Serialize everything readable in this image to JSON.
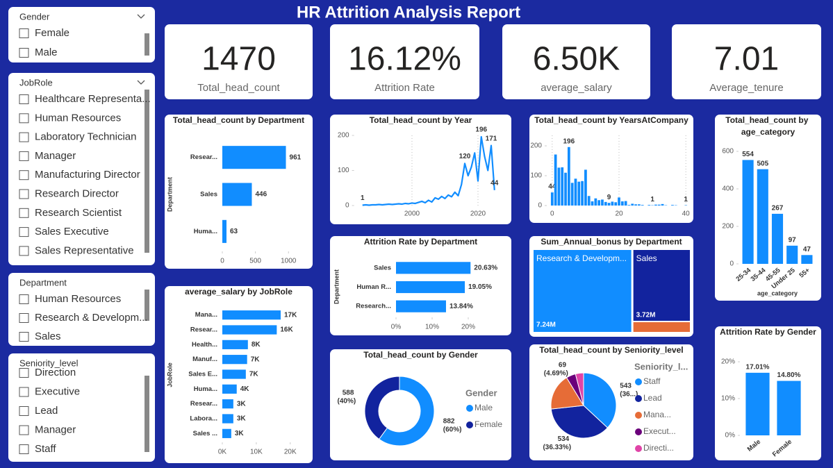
{
  "title": "HR Attrition Analysis Report",
  "slicers": [
    {
      "title": "Gender",
      "items": [
        "Female",
        "Male"
      ]
    },
    {
      "title": "JobRole",
      "items": [
        "Healthcare Representa...",
        "Human Resources",
        "Laboratory Technician",
        "Manager",
        "Manufacturing Director",
        "Research Director",
        "Research Scientist",
        "Sales Executive",
        "Sales Representative"
      ]
    },
    {
      "title": "Department",
      "items": [
        "Human Resources",
        "Research & Developm...",
        "Sales"
      ]
    },
    {
      "title": "Seniority_level",
      "items": [
        "Direction",
        "Executive",
        "Lead",
        "Manager",
        "Staff"
      ]
    }
  ],
  "cards": [
    {
      "value": "1470",
      "label": "Total_head_count"
    },
    {
      "value": "16.12%",
      "label": "Attrition Rate"
    },
    {
      "value": "6.50K",
      "label": "average_salary"
    },
    {
      "value": "7.01",
      "label": "Average_tenure"
    }
  ],
  "chart_data": [
    {
      "type": "hbar",
      "title": "Total_head_count by Department",
      "y_label": "Department",
      "categories": [
        "Resear...",
        "Sales",
        "Huma..."
      ],
      "values": [
        961,
        446,
        63
      ],
      "color": "#118dff",
      "xlim": [
        0,
        1050
      ],
      "xticks": [
        0,
        500,
        1000
      ]
    },
    {
      "type": "line",
      "title": "Total_head_count by Year",
      "x": [
        1985,
        1986,
        1987,
        1988,
        1989,
        1990,
        1991,
        1992,
        1993,
        1994,
        1995,
        1996,
        1997,
        1998,
        1999,
        2000,
        2001,
        2002,
        2003,
        2004,
        2005,
        2006,
        2007,
        2008,
        2009,
        2010,
        2011,
        2012,
        2013,
        2014,
        2015,
        2016,
        2017,
        2018,
        2019,
        2020,
        2021,
        2022,
        2023,
        2024,
        2025
      ],
      "values": [
        1,
        2,
        1,
        2,
        2,
        3,
        2,
        3,
        4,
        3,
        4,
        5,
        4,
        6,
        5,
        7,
        6,
        9,
        12,
        8,
        15,
        10,
        22,
        18,
        26,
        20,
        30,
        25,
        38,
        28,
        60,
        120,
        85,
        110,
        150,
        70,
        196,
        140,
        100,
        171,
        44
      ],
      "value_labels": [
        "1",
        null,
        null,
        null,
        null,
        null,
        null,
        null,
        null,
        null,
        null,
        null,
        null,
        null,
        null,
        null,
        null,
        null,
        null,
        null,
        null,
        null,
        null,
        null,
        null,
        null,
        null,
        null,
        null,
        null,
        null,
        "120",
        null,
        null,
        null,
        null,
        "196",
        null,
        null,
        "171",
        "44"
      ],
      "color": "#118dff",
      "xlim": [
        1983.5,
        2028
      ],
      "xticks": [
        2000,
        2020
      ],
      "ylim": [
        0,
        200
      ],
      "yticks": [
        0,
        100,
        200
      ]
    },
    {
      "type": "column",
      "title": "Total_head_count by YearsAtCompany",
      "x": [
        0,
        1,
        2,
        3,
        4,
        5,
        6,
        7,
        8,
        9,
        10,
        11,
        12,
        13,
        14,
        15,
        16,
        17,
        18,
        19,
        20,
        21,
        22,
        23,
        24,
        25,
        26,
        27,
        29,
        30,
        31,
        32,
        33,
        34,
        36,
        37,
        40
      ],
      "values": [
        44,
        171,
        127,
        128,
        110,
        196,
        76,
        90,
        80,
        82,
        120,
        32,
        14,
        24,
        18,
        20,
        12,
        9,
        13,
        11,
        27,
        14,
        15,
        2,
        6,
        4,
        4,
        2,
        2,
        1,
        3,
        3,
        5,
        1,
        2,
        1,
        1
      ],
      "value_labels": [
        "44",
        null,
        null,
        null,
        null,
        "196",
        null,
        null,
        null,
        null,
        null,
        null,
        null,
        null,
        null,
        null,
        null,
        "9",
        null,
        null,
        null,
        null,
        null,
        null,
        null,
        null,
        null,
        null,
        null,
        "1",
        null,
        null,
        null,
        null,
        null,
        null,
        "1"
      ],
      "color": "#118dff",
      "xlim": [
        -1,
        41
      ],
      "xticks": [
        0,
        20,
        40
      ],
      "ylim": [
        0,
        235
      ],
      "yticks": [
        0,
        100,
        200
      ]
    },
    {
      "type": "column",
      "title": "Total_head_count by age_category",
      "x_label": "age_category",
      "categories": [
        "25-34",
        "35-44",
        "45-55",
        "Under 25",
        "55+"
      ],
      "values": [
        554,
        505,
        267,
        97,
        47
      ],
      "color": "#118dff",
      "ylim": [
        0,
        650
      ],
      "yticks": [
        0,
        200,
        400,
        600
      ]
    },
    {
      "type": "hbar",
      "title": "Attrition Rate by Department",
      "y_label": "Department",
      "categories": [
        "Sales",
        "Human R...",
        "Research..."
      ],
      "values": [
        20.63,
        19.05,
        13.84
      ],
      "value_labels": [
        "20.63%",
        "19.05%",
        "13.84%"
      ],
      "color": "#118dff",
      "xlim": [
        0,
        25
      ],
      "xticks": [
        {
          "value": 0,
          "label": "0%"
        },
        {
          "value": 10,
          "label": "10%"
        },
        {
          "value": 20,
          "label": "20%"
        }
      ]
    },
    {
      "type": "treemap",
      "title": "Sum_Annual_bonus by Department",
      "categories": [
        "Research & Developm...",
        "Sales",
        null
      ],
      "values": [
        7240000,
        3720000,
        500000
      ],
      "value_labels": [
        "7.24M",
        "3.72M",
        null
      ],
      "colors": [
        "#118dff",
        "#12239e",
        "#e66c37"
      ]
    },
    {
      "type": "donut",
      "title": "Total_head_count by Gender",
      "legend_title": "Gender",
      "legend": "right",
      "categories": [
        "Male",
        "Female"
      ],
      "values": [
        882,
        588
      ],
      "value_labels": [
        "882 (60%)",
        "588 (40%)"
      ],
      "colors": [
        "#118dff",
        "#12239e"
      ]
    },
    {
      "type": "pie",
      "title": "Total_head_count by Seniority_level",
      "legend_title": "Seniority_l...",
      "legend": "right",
      "categories": [
        "Staff",
        "Lead",
        "Mana...",
        "Execut...",
        "Directi..."
      ],
      "values": [
        543,
        534,
        265,
        69,
        59
      ],
      "value_labels": [
        "543 (36...)",
        "534 (36.33%)",
        null,
        "69 (4.69%)",
        null
      ],
      "colors": [
        "#118dff",
        "#12239e",
        "#e66c37",
        "#6b007b",
        "#e044a7"
      ]
    },
    {
      "type": "column",
      "title": "Attrition Rate by Gender",
      "categories": [
        "Male",
        "Female"
      ],
      "values": [
        17.01,
        14.8
      ],
      "value_labels": [
        "17.01%",
        "14.80%"
      ],
      "color": "#118dff",
      "ylim": [
        0,
        21
      ],
      "yticks": [
        {
          "value": 0,
          "label": "0%"
        },
        {
          "value": 10,
          "label": "10%"
        },
        {
          "value": 20,
          "label": "20%"
        }
      ]
    },
    {
      "type": "hbar",
      "title": "average_salary by JobRole",
      "y_label": "JobRole",
      "categories": [
        "Mana...",
        "Resear...",
        "Health...",
        "Manuf...",
        "Sales E...",
        "Huma...",
        "Resear...",
        "Labora...",
        "Sales ..."
      ],
      "values": [
        17180,
        16030,
        7530,
        7300,
        6920,
        4240,
        3240,
        3240,
        2630
      ],
      "value_labels": [
        "17K",
        "16K",
        "8K",
        "7K",
        "7K",
        "4K",
        "3K",
        "3K",
        "3K"
      ],
      "color": "#118dff",
      "xlim": [
        0,
        22500
      ],
      "xticks": [
        {
          "value": 0,
          "label": "0K"
        },
        {
          "value": 10000,
          "label": "10K"
        },
        {
          "value": 20000,
          "label": "20K"
        }
      ]
    }
  ]
}
